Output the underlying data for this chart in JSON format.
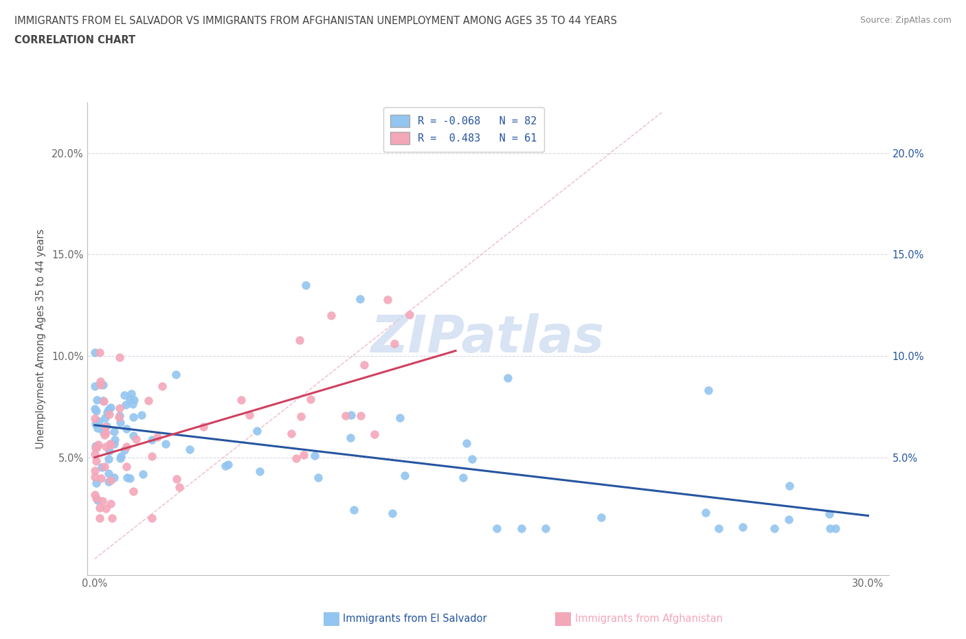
{
  "title_line1": "IMMIGRANTS FROM EL SALVADOR VS IMMIGRANTS FROM AFGHANISTAN UNEMPLOYMENT AMONG AGES 35 TO 44 YEARS",
  "title_line2": "CORRELATION CHART",
  "source": "Source: ZipAtlas.com",
  "ylabel": "Unemployment Among Ages 35 to 44 years",
  "xlim": [
    -0.003,
    0.308
  ],
  "ylim": [
    -0.008,
    0.225
  ],
  "xticks": [
    0.0,
    0.05,
    0.1,
    0.15,
    0.2,
    0.25,
    0.3
  ],
  "xticklabels": [
    "0.0%",
    "",
    "",
    "",
    "",
    "",
    "30.0%"
  ],
  "yticks_left": [
    0.05,
    0.1,
    0.15,
    0.2
  ],
  "yticklabels_left": [
    "5.0%",
    "10.0%",
    "15.0%",
    "20.0%"
  ],
  "yticks_right": [
    0.05,
    0.1,
    0.15,
    0.2
  ],
  "yticklabels_right": [
    "5.0%",
    "10.0%",
    "15.0%",
    "20.0%"
  ],
  "color_es": "#92C5F0",
  "color_af": "#F4A7B9",
  "line_color_es": "#2655A0",
  "line_color_af": "#D04060",
  "diag_color": "#F0B0C0",
  "grid_color": "#CCCCDD",
  "watermark_color": "#C8D8F0",
  "watermark_text": "ZIPatlas",
  "legend_r1": "R = -0.068",
  "legend_n1": "N = 82",
  "legend_r2": "R =  0.483",
  "legend_n2": "N = 61",
  "legend_text_color": "#333333",
  "legend_val_color": "#2655A0",
  "bottom_label_es": "Immigrants from El Salvador",
  "bottom_label_af": "Immigrants from Afghanistan",
  "bottom_color_es": "#2655A0",
  "bottom_color_af": "#F4A7B9"
}
